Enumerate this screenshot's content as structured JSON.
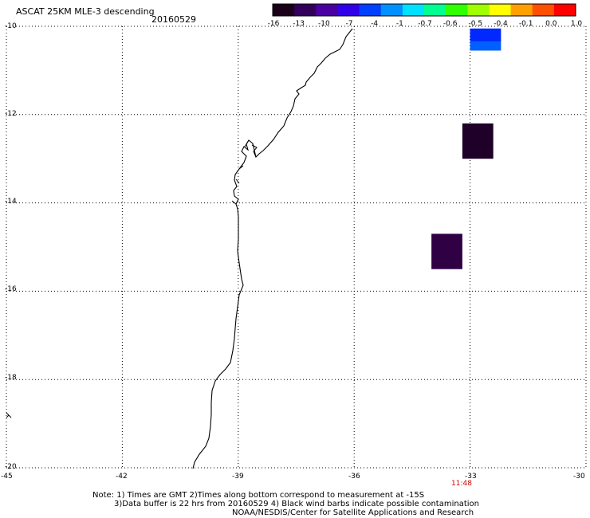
{
  "header": {
    "title": "ASCAT 25KM MLE-3 descending",
    "date": "20160529"
  },
  "colorbar": {
    "labels": [
      "-16",
      "-13",
      "-10",
      "-7",
      "-4",
      "-1",
      "-0.7",
      "-0.6",
      "-0.5",
      "-0.4",
      "-0.1",
      "0.0",
      "1.0"
    ],
    "colors": [
      "#1a0018",
      "#32005a",
      "#4a00a0",
      "#3000e8",
      "#0040ff",
      "#0090ff",
      "#00e0ff",
      "#00ff90",
      "#30ff00",
      "#a0ff00",
      "#ffff00",
      "#ffa000",
      "#ff5000",
      "#ff0000"
    ]
  },
  "axes": {
    "lat_labels": [
      "-10",
      "-12",
      "-14",
      "-16",
      "-18",
      "-20"
    ],
    "lon_labels": [
      "-45",
      "-42",
      "-39",
      "-36",
      "-33",
      "-30"
    ],
    "lat_range": [
      -20,
      -10
    ],
    "lon_range": [
      -45,
      -30
    ],
    "grid": "dotted"
  },
  "time_label": "11:48",
  "cells": [
    {
      "lon": [
        -33.0,
        -32.2
      ],
      "lat": [
        -10.05,
        -10.35
      ],
      "color": "#0028ff"
    },
    {
      "lon": [
        -33.0,
        -32.2
      ],
      "lat": [
        -10.35,
        -10.55
      ],
      "color": "#0060ff"
    },
    {
      "lon": [
        -33.2,
        -32.4
      ],
      "lat": [
        -12.2,
        -13.0
      ],
      "color": "#1e0028"
    },
    {
      "lon": [
        -34.0,
        -33.2
      ],
      "lat": [
        -14.7,
        -15.5
      ],
      "color": "#300045"
    }
  ],
  "notes": {
    "line1": "Note: 1) Times are GMT 2)Times along bottom correspond to measurement at -15S",
    "line2": "3)Data buffer is 22 hrs from 20160529 4) Black wind barbs indicate possible contamination",
    "line3": "NOAA/NESDIS/Center for Satellite Applications and Research"
  }
}
